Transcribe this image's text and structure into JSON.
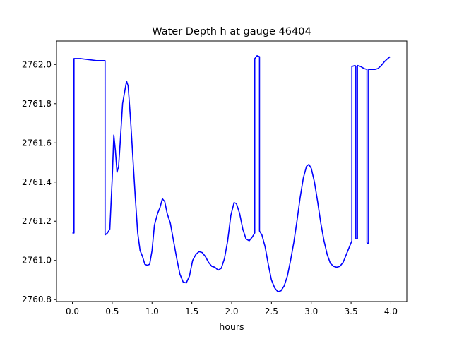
{
  "chart_data": {
    "type": "line",
    "title": "Water Depth h at gauge 46404",
    "xlabel": "hours",
    "ylabel": "",
    "xlim": [
      -0.2,
      4.2
    ],
    "ylim": [
      2760.79,
      2762.12
    ],
    "xticks": [
      0.0,
      0.5,
      1.0,
      1.5,
      2.0,
      2.5,
      3.0,
      3.5,
      4.0
    ],
    "xtick_labels": [
      "0.0",
      "0.5",
      "1.0",
      "1.5",
      "2.0",
      "2.5",
      "3.0",
      "3.5",
      "4.0"
    ],
    "yticks": [
      2760.8,
      2761.0,
      2761.2,
      2761.4,
      2761.6,
      2761.8,
      2762.0
    ],
    "ytick_labels": [
      "2760.8",
      "2761.0",
      "2761.2",
      "2761.4",
      "2761.6",
      "2761.8",
      "2762.0"
    ],
    "grid": false,
    "line_color": "#0000ff",
    "series": [
      {
        "name": "",
        "points": [
          [
            0.0,
            2761.14
          ],
          [
            0.02,
            2761.14
          ],
          [
            0.02,
            2762.03
          ],
          [
            0.1,
            2762.03
          ],
          [
            0.2,
            2762.025
          ],
          [
            0.3,
            2762.02
          ],
          [
            0.41,
            2762.02
          ],
          [
            0.41,
            2761.13
          ],
          [
            0.44,
            2761.14
          ],
          [
            0.47,
            2761.16
          ],
          [
            0.5,
            2761.42
          ],
          [
            0.52,
            2761.64
          ],
          [
            0.54,
            2761.56
          ],
          [
            0.56,
            2761.45
          ],
          [
            0.58,
            2761.48
          ],
          [
            0.6,
            2761.6
          ],
          [
            0.63,
            2761.8
          ],
          [
            0.66,
            2761.87
          ],
          [
            0.68,
            2761.915
          ],
          [
            0.7,
            2761.89
          ],
          [
            0.73,
            2761.72
          ],
          [
            0.76,
            2761.52
          ],
          [
            0.79,
            2761.32
          ],
          [
            0.82,
            2761.14
          ],
          [
            0.85,
            2761.05
          ],
          [
            0.88,
            2761.02
          ],
          [
            0.91,
            2760.98
          ],
          [
            0.94,
            2760.975
          ],
          [
            0.97,
            2760.98
          ],
          [
            1.0,
            2761.05
          ],
          [
            1.03,
            2761.18
          ],
          [
            1.07,
            2761.24
          ],
          [
            1.1,
            2761.27
          ],
          [
            1.13,
            2761.315
          ],
          [
            1.16,
            2761.3
          ],
          [
            1.19,
            2761.24
          ],
          [
            1.23,
            2761.19
          ],
          [
            1.27,
            2761.1
          ],
          [
            1.31,
            2761.01
          ],
          [
            1.35,
            2760.93
          ],
          [
            1.39,
            2760.89
          ],
          [
            1.43,
            2760.885
          ],
          [
            1.47,
            2760.92
          ],
          [
            1.51,
            2761.0
          ],
          [
            1.55,
            2761.03
          ],
          [
            1.59,
            2761.045
          ],
          [
            1.63,
            2761.04
          ],
          [
            1.67,
            2761.02
          ],
          [
            1.71,
            2760.99
          ],
          [
            1.75,
            2760.97
          ],
          [
            1.79,
            2760.965
          ],
          [
            1.83,
            2760.95
          ],
          [
            1.87,
            2760.96
          ],
          [
            1.91,
            2761.01
          ],
          [
            1.95,
            2761.1
          ],
          [
            1.99,
            2761.23
          ],
          [
            2.03,
            2761.295
          ],
          [
            2.06,
            2761.29
          ],
          [
            2.1,
            2761.24
          ],
          [
            2.14,
            2761.16
          ],
          [
            2.18,
            2761.11
          ],
          [
            2.22,
            2761.1
          ],
          [
            2.26,
            2761.12
          ],
          [
            2.29,
            2761.14
          ],
          [
            2.29,
            2762.03
          ],
          [
            2.32,
            2762.045
          ],
          [
            2.35,
            2762.04
          ],
          [
            2.35,
            2761.15
          ],
          [
            2.38,
            2761.13
          ],
          [
            2.42,
            2761.07
          ],
          [
            2.46,
            2760.98
          ],
          [
            2.5,
            2760.9
          ],
          [
            2.54,
            2760.86
          ],
          [
            2.58,
            2760.84
          ],
          [
            2.62,
            2760.845
          ],
          [
            2.66,
            2760.87
          ],
          [
            2.7,
            2760.92
          ],
          [
            2.74,
            2761.0
          ],
          [
            2.78,
            2761.09
          ],
          [
            2.82,
            2761.2
          ],
          [
            2.86,
            2761.32
          ],
          [
            2.9,
            2761.42
          ],
          [
            2.94,
            2761.48
          ],
          [
            2.97,
            2761.49
          ],
          [
            3.0,
            2761.47
          ],
          [
            3.04,
            2761.4
          ],
          [
            3.08,
            2761.3
          ],
          [
            3.12,
            2761.19
          ],
          [
            3.16,
            2761.1
          ],
          [
            3.2,
            2761.03
          ],
          [
            3.24,
            2760.985
          ],
          [
            3.28,
            2760.97
          ],
          [
            3.32,
            2760.965
          ],
          [
            3.36,
            2760.97
          ],
          [
            3.4,
            2760.99
          ],
          [
            3.44,
            2761.03
          ],
          [
            3.48,
            2761.07
          ],
          [
            3.51,
            2761.1
          ],
          [
            3.51,
            2761.99
          ],
          [
            3.55,
            2761.995
          ],
          [
            3.56,
            2761.99
          ],
          [
            3.56,
            2761.11
          ],
          [
            3.58,
            2761.11
          ],
          [
            3.58,
            2761.995
          ],
          [
            3.62,
            2761.99
          ],
          [
            3.66,
            2761.98
          ],
          [
            3.7,
            2761.975
          ],
          [
            3.7,
            2761.09
          ],
          [
            3.72,
            2761.085
          ],
          [
            3.72,
            2761.975
          ],
          [
            3.76,
            2761.975
          ],
          [
            3.8,
            2761.975
          ],
          [
            3.84,
            2761.98
          ],
          [
            3.88,
            2761.995
          ],
          [
            3.92,
            2762.015
          ],
          [
            3.96,
            2762.03
          ],
          [
            3.99,
            2762.04
          ]
        ]
      }
    ]
  }
}
